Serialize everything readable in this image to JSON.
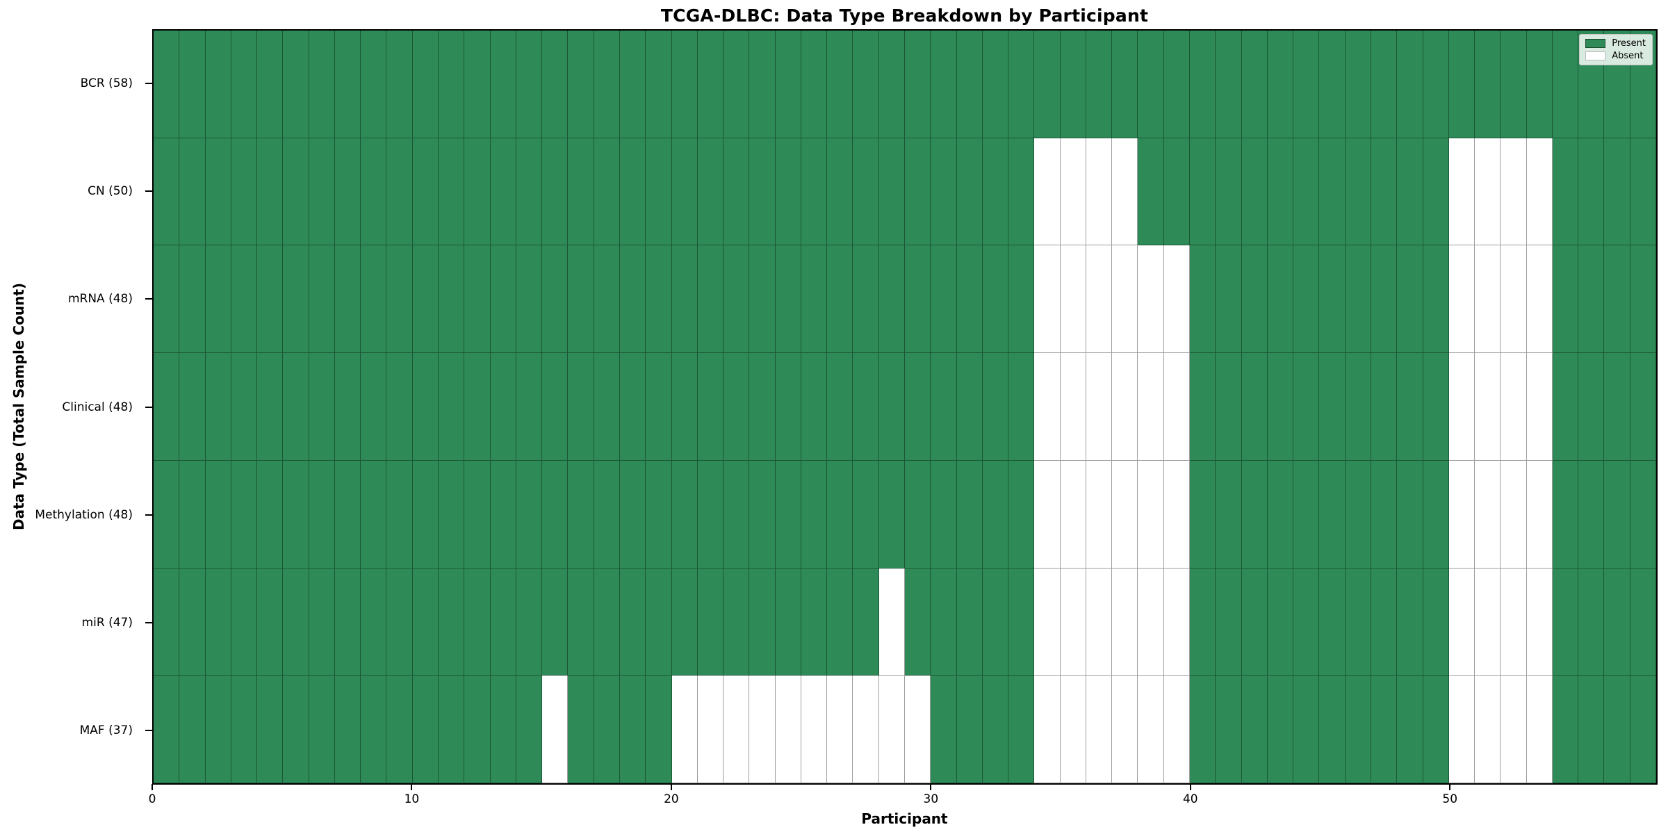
{
  "chart_data": {
    "type": "heatmap",
    "title": "TCGA-DLBC: Data Type Breakdown by Participant",
    "xlabel": "Participant",
    "ylabel": "Data Type (Total Sample Count)",
    "x_ticks": [
      0,
      10,
      20,
      30,
      40,
      50
    ],
    "x_range": [
      0,
      58
    ],
    "n_participants": 58,
    "grid": true,
    "legend_position": "upper right",
    "colors": {
      "present": "#2E8B57",
      "absent": "#FFFFFF",
      "cell_edge": "rgba(0,0,0,0.38)",
      "spine": "#000000",
      "background": "#FFFFFF"
    },
    "rows": [
      {
        "label": "BCR (58)",
        "name": "BCR",
        "total": 58,
        "absent": []
      },
      {
        "label": "CN (50)",
        "name": "CN",
        "total": 50,
        "absent": [
          34,
          35,
          36,
          37,
          50,
          51,
          52,
          53
        ]
      },
      {
        "label": "mRNA (48)",
        "name": "mRNA",
        "total": 48,
        "absent": [
          34,
          35,
          36,
          37,
          38,
          39,
          50,
          51,
          52,
          53
        ]
      },
      {
        "label": "Clinical (48)",
        "name": "Clinical",
        "total": 48,
        "absent": [
          34,
          35,
          36,
          37,
          38,
          39,
          50,
          51,
          52,
          53
        ]
      },
      {
        "label": "Methylation (48)",
        "name": "Methylation",
        "total": 48,
        "absent": [
          34,
          35,
          36,
          37,
          38,
          39,
          50,
          51,
          52,
          53
        ]
      },
      {
        "label": "miR (47)",
        "name": "miR",
        "total": 47,
        "absent": [
          28,
          34,
          35,
          36,
          37,
          38,
          39,
          50,
          51,
          52,
          53
        ]
      },
      {
        "label": "MAF (37)",
        "name": "MAF",
        "total": 37,
        "absent": [
          15,
          20,
          21,
          22,
          23,
          24,
          25,
          26,
          27,
          28,
          29,
          34,
          35,
          36,
          37,
          38,
          39,
          50,
          51,
          52,
          53
        ]
      }
    ],
    "legend": [
      {
        "label": "Present",
        "color": "#2E8B57"
      },
      {
        "label": "Absent",
        "color": "#FFFFFF"
      }
    ]
  }
}
